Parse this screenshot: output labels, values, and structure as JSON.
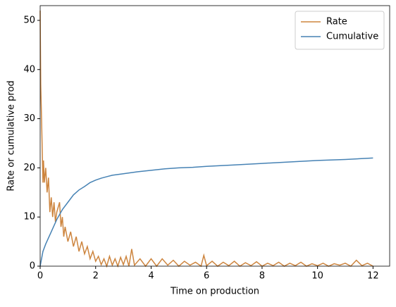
{
  "chart_data": {
    "type": "line",
    "xlabel": "Time on production",
    "ylabel": "Rate or cumulative prod",
    "xlim": [
      0,
      12.6
    ],
    "ylim": [
      0,
      53
    ],
    "xticks": [
      0,
      2,
      4,
      6,
      8,
      10,
      12
    ],
    "yticks": [
      0,
      10,
      20,
      30,
      40,
      50
    ],
    "grid": false,
    "legend": "upper right",
    "series": [
      {
        "name": "Rate",
        "color": "#cd853f",
        "x": [
          0,
          0.02,
          0.05,
          0.1,
          0.12,
          0.15,
          0.2,
          0.25,
          0.3,
          0.35,
          0.4,
          0.45,
          0.5,
          0.55,
          0.6,
          0.7,
          0.75,
          0.8,
          0.85,
          0.9,
          1.0,
          1.1,
          1.2,
          1.3,
          1.4,
          1.5,
          1.6,
          1.7,
          1.8,
          1.9,
          2.0,
          2.1,
          2.2,
          2.3,
          2.4,
          2.5,
          2.6,
          2.7,
          2.8,
          2.9,
          3.0,
          3.1,
          3.2,
          3.3,
          3.4,
          3.6,
          3.8,
          4.0,
          4.2,
          4.4,
          4.6,
          4.8,
          5.0,
          5.2,
          5.4,
          5.6,
          5.8,
          5.9,
          6.0,
          6.2,
          6.4,
          6.6,
          6.8,
          7.0,
          7.2,
          7.4,
          7.6,
          7.8,
          8.0,
          8.2,
          8.4,
          8.6,
          8.8,
          9.0,
          9.2,
          9.4,
          9.6,
          9.8,
          10.0,
          10.2,
          10.4,
          10.6,
          10.8,
          11.0,
          11.2,
          11.4,
          11.6,
          11.8,
          12.0
        ],
        "values": [
          52,
          37,
          30,
          17,
          21.5,
          17,
          20,
          15,
          18,
          11,
          14,
          10,
          13,
          9,
          11,
          13,
          8,
          10,
          6,
          8,
          5,
          7,
          4,
          6,
          3,
          5,
          2.5,
          4,
          1.5,
          3,
          1,
          2,
          0.3,
          1.5,
          0,
          2,
          0.2,
          1.5,
          0,
          1.8,
          0.3,
          2,
          0,
          3.5,
          0.2,
          1.5,
          0,
          1.5,
          0,
          1.5,
          0.2,
          1.2,
          0,
          1,
          0.2,
          0.8,
          0,
          2.2,
          0.1,
          1,
          0,
          0.8,
          0.1,
          1,
          0,
          0.7,
          0.1,
          0.9,
          0,
          0.6,
          0.1,
          0.8,
          0,
          0.6,
          0.1,
          0.8,
          0,
          0.5,
          0.1,
          0.6,
          0,
          0.5,
          0.2,
          0.6,
          0,
          1.2,
          0.1,
          0.6,
          0
        ]
      },
      {
        "name": "Cumulative",
        "color": "#4682b4",
        "x": [
          0,
          0.1,
          0.2,
          0.4,
          0.6,
          0.8,
          1.0,
          1.2,
          1.4,
          1.6,
          1.8,
          2.0,
          2.2,
          2.4,
          2.6,
          3.0,
          3.5,
          4.0,
          4.5,
          5.0,
          5.5,
          6.0,
          7.0,
          8.0,
          9.0,
          10.0,
          11.0,
          12.0
        ],
        "values": [
          0,
          3,
          4.5,
          7,
          9.5,
          11.5,
          13,
          14.5,
          15.5,
          16.2,
          17,
          17.5,
          17.9,
          18.2,
          18.5,
          18.8,
          19.2,
          19.5,
          19.8,
          20,
          20.1,
          20.3,
          20.6,
          20.9,
          21.2,
          21.5,
          21.7,
          22
        ]
      }
    ]
  }
}
